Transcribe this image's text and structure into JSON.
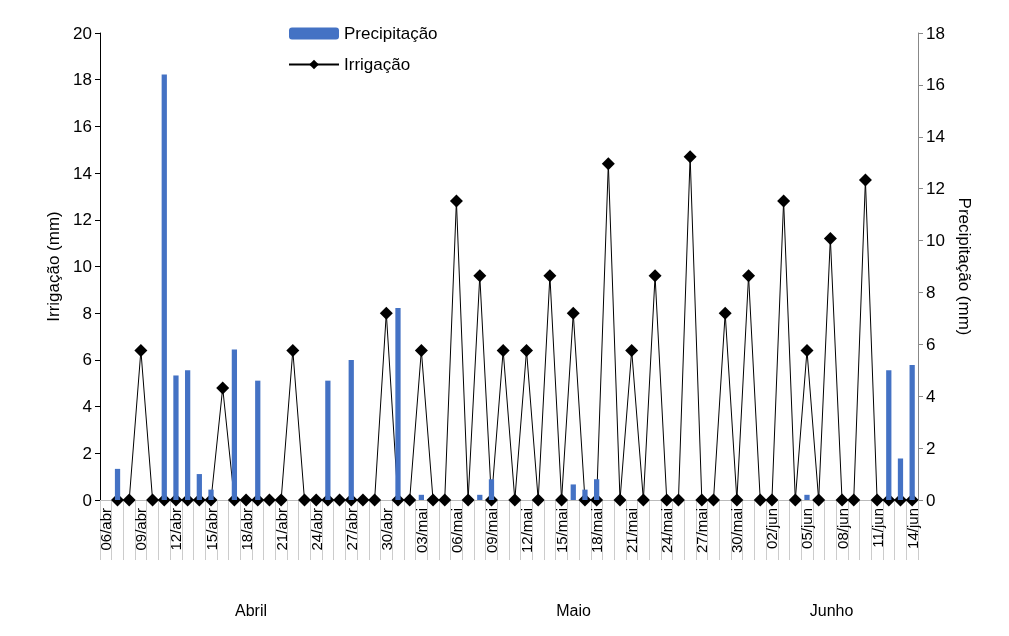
{
  "chart_data": {
    "type": "bar",
    "categories": [
      "06/abr",
      null,
      null,
      "09/abr",
      null,
      null,
      "12/abr",
      null,
      null,
      "15/abr",
      null,
      null,
      "18/abr",
      null,
      null,
      "21/abr",
      null,
      null,
      "24/abr",
      null,
      null,
      "27/abr",
      null,
      null,
      "30/abr",
      null,
      null,
      "03/mai",
      null,
      null,
      "06/mai",
      null,
      null,
      "09/mai",
      null,
      null,
      "12/mai",
      null,
      null,
      "15/mai",
      null,
      null,
      "18/mai",
      null,
      null,
      "21/mai",
      null,
      null,
      "24/mai",
      null,
      null,
      "27/mai",
      null,
      null,
      "30/mai",
      null,
      null,
      "02/jun",
      null,
      null,
      "05/jun",
      null,
      null,
      "08/jun",
      null,
      null,
      "11/jun",
      null,
      null,
      "14/jun"
    ],
    "series": [
      {
        "name": "Precipitação",
        "axis": "y2",
        "color": "#4472c4",
        "values": [
          null,
          1.2,
          null,
          null,
          null,
          16.4,
          4.8,
          5.0,
          1.0,
          0.4,
          null,
          5.8,
          null,
          4.6,
          null,
          null,
          null,
          null,
          null,
          4.6,
          null,
          5.4,
          null,
          null,
          null,
          7.4,
          null,
          0.2,
          null,
          null,
          null,
          null,
          0.2,
          0.8,
          null,
          null,
          null,
          null,
          null,
          null,
          0.6,
          0.4,
          0.8,
          null,
          null,
          null,
          null,
          null,
          null,
          null,
          null,
          null,
          null,
          null,
          null,
          null,
          null,
          null,
          null,
          null,
          0.2,
          null,
          null,
          null,
          null,
          null,
          null,
          5.0,
          1.6,
          5.2
        ]
      },
      {
        "name": "Irrigação",
        "type": "line",
        "color": "#000000",
        "marker": "diamond",
        "values": [
          null,
          0,
          0,
          6.4,
          0,
          0,
          0,
          0,
          0,
          0,
          4.8,
          0,
          0,
          0,
          0,
          0,
          6.4,
          0,
          0,
          0,
          0,
          0,
          0,
          0,
          8.0,
          0,
          0,
          6.4,
          0,
          0,
          12.8,
          0,
          9.6,
          0,
          6.4,
          0,
          6.4,
          0,
          9.6,
          0,
          8.0,
          0,
          0,
          14.4,
          0,
          6.4,
          0,
          9.6,
          0,
          0,
          14.7,
          0,
          0,
          8.0,
          0,
          9.6,
          0,
          0,
          12.8,
          0,
          6.4,
          0,
          11.2,
          0,
          0,
          13.7,
          0,
          0,
          0,
          0
        ]
      }
    ],
    "ylabel": "Irrigação (mm)",
    "y2label": "Precipitação (mm)",
    "ylim": [
      0,
      20
    ],
    "yticks": [
      0,
      2,
      4,
      6,
      8,
      10,
      12,
      14,
      16,
      18,
      20
    ],
    "y2lim": [
      0,
      18
    ],
    "y2ticks": [
      0,
      2,
      4,
      6,
      8,
      10,
      12,
      14,
      16,
      18
    ],
    "legend": "top",
    "annotations": [
      "Abril",
      "Maio",
      "Junho"
    ]
  }
}
